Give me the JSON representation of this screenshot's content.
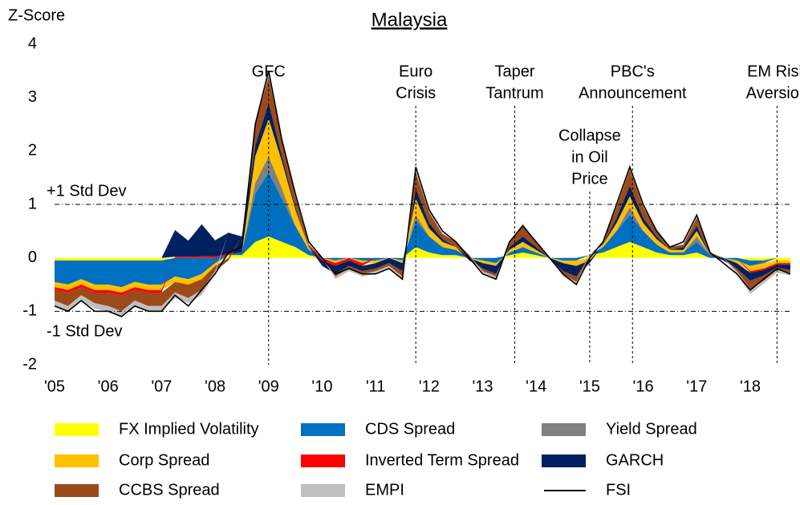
{
  "chart_data": {
    "type": "stacked_area",
    "title": "Malaysia",
    "y_label": "Z-Score",
    "x": [
      2005,
      2005.25,
      2005.5,
      2005.75,
      2006,
      2006.25,
      2006.5,
      2006.75,
      2007,
      2007.25,
      2007.5,
      2007.75,
      2008,
      2008.25,
      2008.5,
      2008.75,
      2009,
      2009.25,
      2009.5,
      2009.75,
      2010,
      2010.25,
      2010.5,
      2010.75,
      2011,
      2011.25,
      2011.5,
      2011.75,
      2012,
      2012.25,
      2012.5,
      2012.75,
      2013,
      2013.25,
      2013.5,
      2013.75,
      2014,
      2014.25,
      2014.5,
      2014.75,
      2015,
      2015.25,
      2015.5,
      2015.75,
      2016,
      2016.25,
      2016.5,
      2016.75,
      2017,
      2017.25,
      2017.5,
      2017.75,
      2018,
      2018.25,
      2018.5,
      2018.75
    ],
    "xlim": [
      2005,
      2018.75
    ],
    "xticks": [
      {
        "value": 2005,
        "label": "'05"
      },
      {
        "value": 2006,
        "label": "'06"
      },
      {
        "value": 2007,
        "label": "'07"
      },
      {
        "value": 2008,
        "label": "'08"
      },
      {
        "value": 2009,
        "label": "'09"
      },
      {
        "value": 2010,
        "label": "'10"
      },
      {
        "value": 2011,
        "label": "'11"
      },
      {
        "value": 2012,
        "label": "'12"
      },
      {
        "value": 2013,
        "label": "'13"
      },
      {
        "value": 2014,
        "label": "'14"
      },
      {
        "value": 2015,
        "label": "'15"
      },
      {
        "value": 2016,
        "label": "'16"
      },
      {
        "value": 2017,
        "label": "'17"
      },
      {
        "value": 2018,
        "label": "'18"
      }
    ],
    "ylim": [
      -2,
      4
    ],
    "yticks": [
      -2,
      -1,
      0,
      1,
      2,
      3,
      4
    ],
    "reference_lines": [
      {
        "value": 1,
        "label": "+1 Std Dev"
      },
      {
        "value": -1,
        "label": "-1 Std Dev"
      }
    ],
    "annotations": [
      {
        "x": 2009,
        "lines": [
          "GFC"
        ]
      },
      {
        "x": 2011.75,
        "lines": [
          "Euro",
          "Crisis"
        ]
      },
      {
        "x": 2013.6,
        "lines": [
          "Taper",
          "Tantrum"
        ]
      },
      {
        "x": 2015,
        "lines": [
          "Collapse",
          "in Oil",
          "Price"
        ]
      },
      {
        "x": 2015.8,
        "lines": [
          "PBC's",
          "Announcement"
        ]
      },
      {
        "x": 2018.5,
        "lines": [
          "EM Risk",
          "Aversion"
        ]
      }
    ],
    "series": [
      {
        "name": "FX Implied Volatility",
        "color": "#ffff00",
        "values": [
          -0.05,
          -0.05,
          -0.05,
          -0.05,
          -0.05,
          -0.05,
          -0.05,
          -0.05,
          -0.05,
          0,
          0,
          0,
          0,
          0.05,
          0.05,
          0.3,
          0.4,
          0.3,
          0.2,
          0.05,
          0,
          0,
          0,
          0,
          0,
          0,
          0,
          0.2,
          0.1,
          0.05,
          0.05,
          0,
          0,
          0,
          0.05,
          0.1,
          0.05,
          0,
          0,
          0,
          0.05,
          0.1,
          0.2,
          0.3,
          0.2,
          0.1,
          0.05,
          0.05,
          0.1,
          0,
          0,
          0,
          -0.05,
          -0.05,
          -0.05,
          -0.05
        ]
      },
      {
        "name": "CDS Spread",
        "color": "#0070c0",
        "values": [
          -0.4,
          -0.45,
          -0.35,
          -0.45,
          -0.45,
          -0.5,
          -0.4,
          -0.45,
          -0.45,
          -0.35,
          -0.4,
          -0.3,
          -0.1,
          0,
          0.05,
          0.9,
          1.2,
          0.8,
          0.4,
          0.1,
          0,
          -0.05,
          0,
          -0.05,
          -0.05,
          0,
          -0.05,
          0.5,
          0.3,
          0.15,
          0.1,
          0,
          -0.05,
          -0.1,
          0.05,
          0.1,
          0.05,
          0,
          -0.05,
          -0.05,
          0,
          0.1,
          0.3,
          0.5,
          0.3,
          0.15,
          0.05,
          0.05,
          0.2,
          0.05,
          0,
          -0.05,
          -0.1,
          -0.05,
          0,
          0
        ]
      },
      {
        "name": "Yield Spread",
        "color": "#808080",
        "values": [
          0,
          0,
          0,
          0,
          0,
          0,
          0,
          0,
          0,
          0,
          0,
          0,
          0,
          0,
          0,
          0.2,
          0.3,
          0.2,
          0,
          0,
          0,
          0,
          0,
          0,
          0,
          0,
          0,
          0.1,
          0,
          0,
          0,
          0,
          0,
          0,
          0,
          0,
          0,
          0,
          0,
          0,
          0,
          0,
          0,
          0.15,
          0,
          0,
          0,
          0,
          0.1,
          0,
          0,
          0,
          0,
          0,
          0,
          0
        ]
      },
      {
        "name": "Corp Spread",
        "color": "#ffc000",
        "values": [
          -0.1,
          -0.1,
          -0.1,
          -0.1,
          -0.1,
          -0.1,
          -0.1,
          -0.1,
          -0.1,
          -0.1,
          -0.1,
          -0.1,
          -0.05,
          0,
          0,
          0.5,
          0.7,
          0.5,
          0.3,
          0.05,
          0,
          -0.05,
          0,
          -0.05,
          -0.05,
          0,
          -0.05,
          0.3,
          0.15,
          0.1,
          0.05,
          0,
          -0.05,
          -0.05,
          0.05,
          0.1,
          0.05,
          0,
          -0.05,
          -0.1,
          -0.05,
          0.05,
          0.15,
          0.2,
          0.15,
          0.1,
          0.05,
          0.05,
          0.1,
          0,
          0,
          -0.05,
          -0.1,
          -0.1,
          -0.05,
          -0.05
        ]
      },
      {
        "name": "Inverted Term Spread",
        "color": "#ff0000",
        "values": [
          -0.05,
          -0.05,
          -0.05,
          -0.05,
          -0.05,
          -0.05,
          -0.05,
          -0.05,
          -0.05,
          0.02,
          0.02,
          0.03,
          0.03,
          0.02,
          0,
          0,
          0,
          0,
          0,
          0,
          -0.05,
          -0.05,
          -0.05,
          -0.05,
          0,
          0,
          0,
          0,
          0,
          0,
          0,
          0,
          0,
          0,
          0,
          0,
          0,
          0,
          0,
          0,
          0,
          0,
          0,
          0,
          0,
          0,
          0,
          0,
          0,
          0,
          0,
          0,
          -0.03,
          -0.03,
          -0.03,
          -0.03
        ]
      },
      {
        "name": "GARCH",
        "color": "#002060",
        "values": [
          0,
          0,
          0,
          0,
          0,
          0,
          0,
          0,
          0,
          0.5,
          0.3,
          0.6,
          0.3,
          0.4,
          0.3,
          0.2,
          0.3,
          0.1,
          0.05,
          0,
          -0.1,
          -0.15,
          -0.1,
          -0.1,
          -0.1,
          -0.1,
          -0.15,
          0.2,
          0.1,
          0.05,
          0,
          -0.05,
          -0.1,
          -0.15,
          0.05,
          0.1,
          0.05,
          0,
          -0.15,
          -0.2,
          -0.05,
          0,
          0.1,
          0.2,
          0.1,
          0.05,
          0,
          0.05,
          0.1,
          0,
          -0.05,
          -0.1,
          -0.15,
          -0.1,
          -0.05,
          -0.1
        ]
      },
      {
        "name": "CCBS Spread",
        "color": "#9c4a1a",
        "values": [
          -0.2,
          -0.25,
          -0.15,
          -0.2,
          -0.25,
          -0.3,
          -0.2,
          -0.25,
          -0.25,
          -0.2,
          -0.25,
          -0.2,
          -0.1,
          -0.05,
          0,
          0.4,
          0.5,
          0.3,
          0.2,
          0.05,
          0,
          -0.05,
          -0.05,
          -0.05,
          -0.05,
          -0.05,
          -0.1,
          0.3,
          0.2,
          0.1,
          0.1,
          0.05,
          -0.05,
          -0.05,
          0.1,
          0.2,
          0.1,
          0,
          -0.05,
          -0.1,
          0,
          0.05,
          0.2,
          0.3,
          0.2,
          0.1,
          0.05,
          0.05,
          0.15,
          0.05,
          0,
          -0.05,
          -0.15,
          -0.1,
          -0.05,
          -0.05
        ]
      },
      {
        "name": "EMPI",
        "color": "#bfbfbf",
        "values": [
          -0.1,
          -0.1,
          -0.1,
          -0.1,
          -0.1,
          -0.1,
          -0.1,
          -0.1,
          -0.1,
          -0.1,
          -0.1,
          -0.1,
          -0.05,
          0,
          0,
          0.05,
          0.1,
          0.05,
          0.05,
          0,
          0,
          -0.05,
          -0.05,
          -0.05,
          -0.05,
          -0.05,
          -0.05,
          0.05,
          0.05,
          0,
          0,
          0,
          -0.05,
          -0.05,
          0,
          0.05,
          0,
          0,
          -0.05,
          -0.05,
          0,
          0,
          0.05,
          0.1,
          0.05,
          0.05,
          0,
          0,
          0.05,
          0,
          0,
          -0.05,
          -0.1,
          -0.05,
          -0.05,
          -0.05
        ]
      },
      {
        "name": "FSI",
        "color": "#000000",
        "type": "line",
        "values": [
          -0.9,
          -1.0,
          -0.8,
          -1.0,
          -1.0,
          -1.1,
          -0.9,
          -1.0,
          -1.0,
          -0.7,
          -0.9,
          -0.6,
          -0.3,
          0.1,
          0.2,
          2.5,
          3.5,
          2.2,
          1.2,
          0.3,
          0.0,
          -0.3,
          -0.2,
          -0.3,
          -0.3,
          -0.2,
          -0.4,
          1.7,
          0.9,
          0.5,
          0.3,
          0.0,
          -0.3,
          -0.4,
          0.3,
          0.6,
          0.3,
          0.0,
          -0.3,
          -0.5,
          0.0,
          0.3,
          1.0,
          1.7,
          1.0,
          0.5,
          0.2,
          0.3,
          0.8,
          0.1,
          -0.1,
          -0.3,
          -0.6,
          -0.4,
          -0.2,
          -0.3
        ]
      }
    ]
  }
}
